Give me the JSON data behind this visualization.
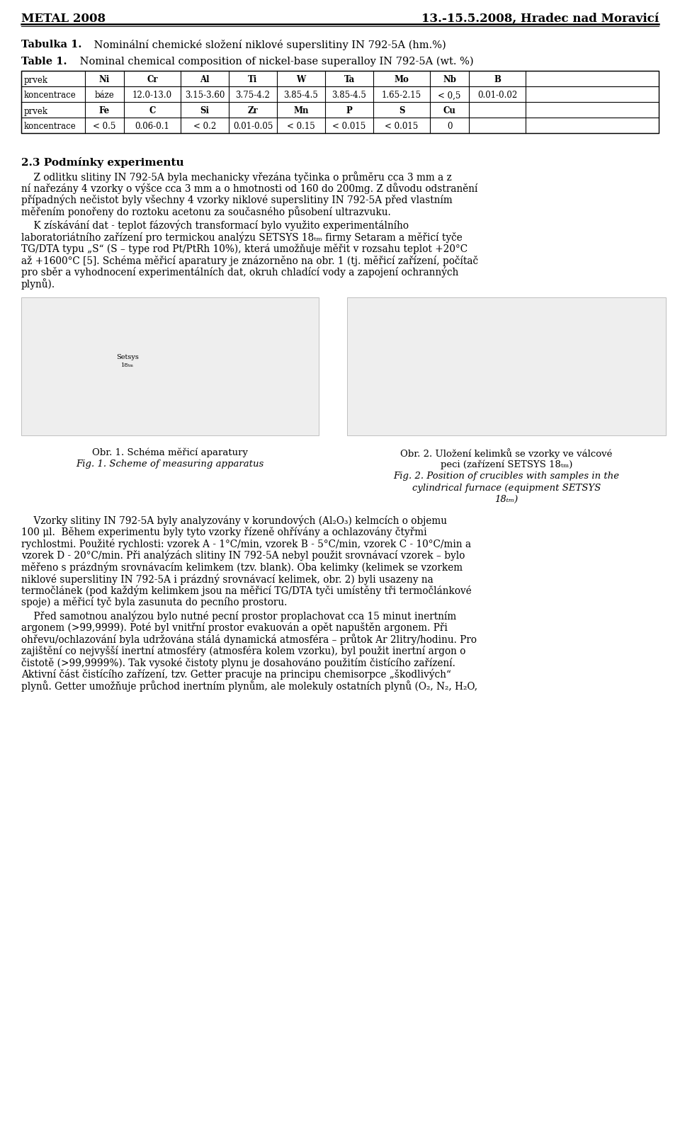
{
  "header_left": "METAL 2008",
  "header_right": "13.-15.5.2008, Hradec nad Moravicí",
  "tabulka_bold": "Tabulka 1.",
  "tabulka_rest": " Nominální chemické složení niklové superslitiny IN 792-5A (hm.%)",
  "table_bold": "Table 1.",
  "table_rest": " Nominal chemical composition of nickel-base superalloy IN 792-5A (wt. %)",
  "table_row1": [
    "prvek",
    "Ni",
    "Cr",
    "Al",
    "Ti",
    "W",
    "Ta",
    "Mo",
    "Nb",
    "B"
  ],
  "table_row2": [
    "koncentrace",
    "báze",
    "12.0-13.0",
    "3.15-3.60",
    "3.75-4.2",
    "3.85-4.5",
    "3.85-4.5",
    "1.65-2.15",
    "< 0,5",
    "0.01-0.02"
  ],
  "table_row3": [
    "prvek",
    "Fe",
    "C",
    "Si",
    "Zr",
    "Mn",
    "P",
    "S",
    "Cu",
    ""
  ],
  "table_row4": [
    "koncentrace",
    "< 0.5",
    "0.06-0.1",
    "< 0.2",
    "0.01-0.05",
    "< 0.15",
    "< 0.015",
    "< 0.015",
    "0",
    ""
  ],
  "section_heading": "2.3 Podmínky experimentu",
  "para1_lines": [
    "    Z odlitku slitiny IN 792-5A byla mechanicky vřezána tyčinka o průměru cca 3 mm a z",
    "ní nařezány 4 vzorky o výšce cca 3 mm a o hmotnosti od 160 do 200mg. Z důvodu odstranění",
    "případných nečistot byly všechny 4 vzorky niklové superslitiny IN 792-5A před vlastním",
    "měřením ponořeny do roztoku acetonu za současného působení ultrazvuku."
  ],
  "para2_lines": [
    "    K získávání dat - teplot fázových transformací bylo využito experimentálního",
    "laboratoriátního zařízení pro termickou analýzu SETSYS 18ₜₘ firmy Setaram a měřicí tyče",
    "TG/DTA typu „S“ (S – type rod Pt/PtRh 10%), která umožňuje měřit v rozsahu teplot +20°C",
    "až +1600°C [5]. Schéma měřicí aparatury je znázorněno na obr. 1 (tj. měřicí zařízení, počítač",
    "pro sběr a vyhodnocení experimentálních dat, okruh chladící vody a zapojení ochranných",
    "plynů)."
  ],
  "cap_left_1": "Obr. 1. Schéma měřicí aparatury",
  "cap_left_2": "Fig. 1. Scheme of measuring apparatus",
  "cap_right_1": "Obr. 2. Uložení kelimků se vzorky ve válcové",
  "cap_right_2": "peci (zařízení SETSYS 18ₜₘ)",
  "cap_right_3": "Fig. 2. Position of crucibles with samples in the",
  "cap_right_4": "cylindrical furnace (equipment SETSYS",
  "cap_right_5": "18ₜₘ)",
  "para3_lines": [
    "    Vzorky slitiny IN 792-5A byly analyzovány v korundových (Al₂O₃) kelmcích o objemu",
    "100 μl.  Během experimentu byly tyto vzorky řízeně ohřívány a ochlazovány čtyřmi",
    "rychlostmi. Použité rychlosti: vzorek A - 1°C/min, vzorek B - 5°C/min, vzorek C - 10°C/min a",
    "vzorek D - 20°C/min. Při analýzách slitiny IN 792-5A nebyl použit srovnávací vzorek – bylo",
    "měřeno s prázdným srovnávacím kelimkem (tzv. blank). Oba kelimky (kelimek se vzorkem",
    "niklové superslitiny IN 792-5A i prázdný srovnávací kelimek, obr. 2) byli usazeny na",
    "termočlánek (pod každým kelimkem jsou na měřicí TG/DTA tyči umístěny tři termočlánkové",
    "spoje) a měřicí tyč byla zasunuta do pecního prostoru."
  ],
  "para4_lines": [
    "    Před samotnou analýzou bylo nutné pecní prostor proplachovat cca 15 minut inertním",
    "argonem (>99,9999). Poté byl vnitřní prostor evakuován a opět napuštěn argonem. Při",
    "ohřevu/ochlazování byla udržována stálá dynamická atmosféra – průtok Ar 2litry/hodinu. Pro",
    "zajištění co nejvyšší inertní atmosféry (atmosféra kolem vzorku), byl použit inertní argon o",
    "čistotě (>99,9999%). Tak vysoké čistoty plynu je dosahováno použitím čistícího zařízení.",
    "Aktivní část čistícího zařízení, tzv. Getter pracuje na principu chemisorpce „škodlivých“",
    "plynů. Getter umožňuje průchod inertním plynům, ale molekuly ostatních plynů (O₂, N₂, H₂O,"
  ],
  "bg_color": "#ffffff"
}
